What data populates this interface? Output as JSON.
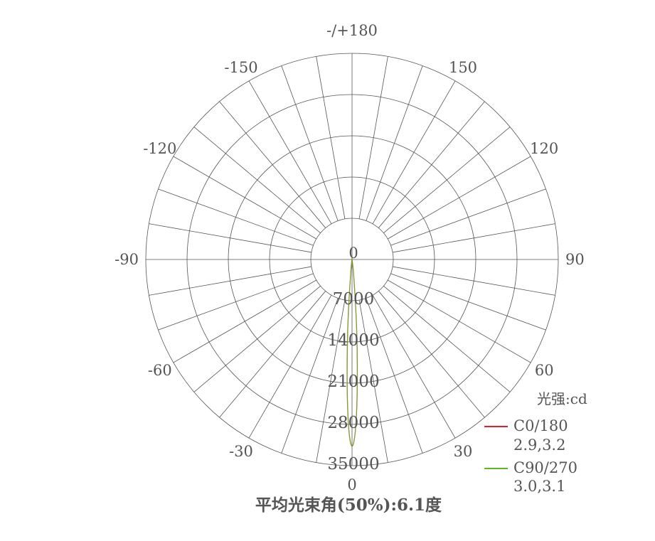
{
  "chart_data": {
    "type": "polar-line",
    "title": "平均光束角(50%):6.1度",
    "unit_label": "光强:cd",
    "radial_ticks": [
      "0",
      "7000",
      "14000",
      "21000",
      "28000",
      "35000"
    ],
    "radial_range": [
      0,
      35000
    ],
    "angle_ticks": [
      "0",
      "30",
      "60",
      "90",
      "120",
      "150",
      "-/+180",
      "-150",
      "-120",
      "-90",
      "-60",
      "-30"
    ],
    "angle_tick_values": [
      0,
      30,
      60,
      90,
      120,
      150,
      180,
      -150,
      -120,
      -90,
      -60,
      -30
    ],
    "grid": true,
    "legend_position": "bottom-right",
    "series": [
      {
        "name": "C0/180",
        "subtitle": "2.9,3.2",
        "color": "#e0202a",
        "angles": [
          -12,
          -9,
          -6,
          -4,
          -3,
          -2,
          -1,
          0,
          1,
          2,
          3,
          4,
          6,
          9,
          12
        ],
        "values": [
          0,
          40,
          1630,
          8470,
          15100,
          22800,
          29200,
          31700,
          29600,
          24200,
          17200,
          10700,
          2770,
          130,
          0
        ]
      },
      {
        "name": "C90/270",
        "subtitle": "3.0,3.1",
        "color": "#5cb82a",
        "angles": [
          -12,
          -9,
          -6,
          -4,
          -3,
          -2,
          -1,
          0,
          1,
          2,
          3,
          4,
          6,
          9,
          12
        ],
        "values": [
          0,
          60,
          1980,
          9230,
          15850,
          23300,
          29350,
          31700,
          29500,
          23800,
          16550,
          9990,
          2360,
          90,
          0
        ]
      }
    ]
  }
}
